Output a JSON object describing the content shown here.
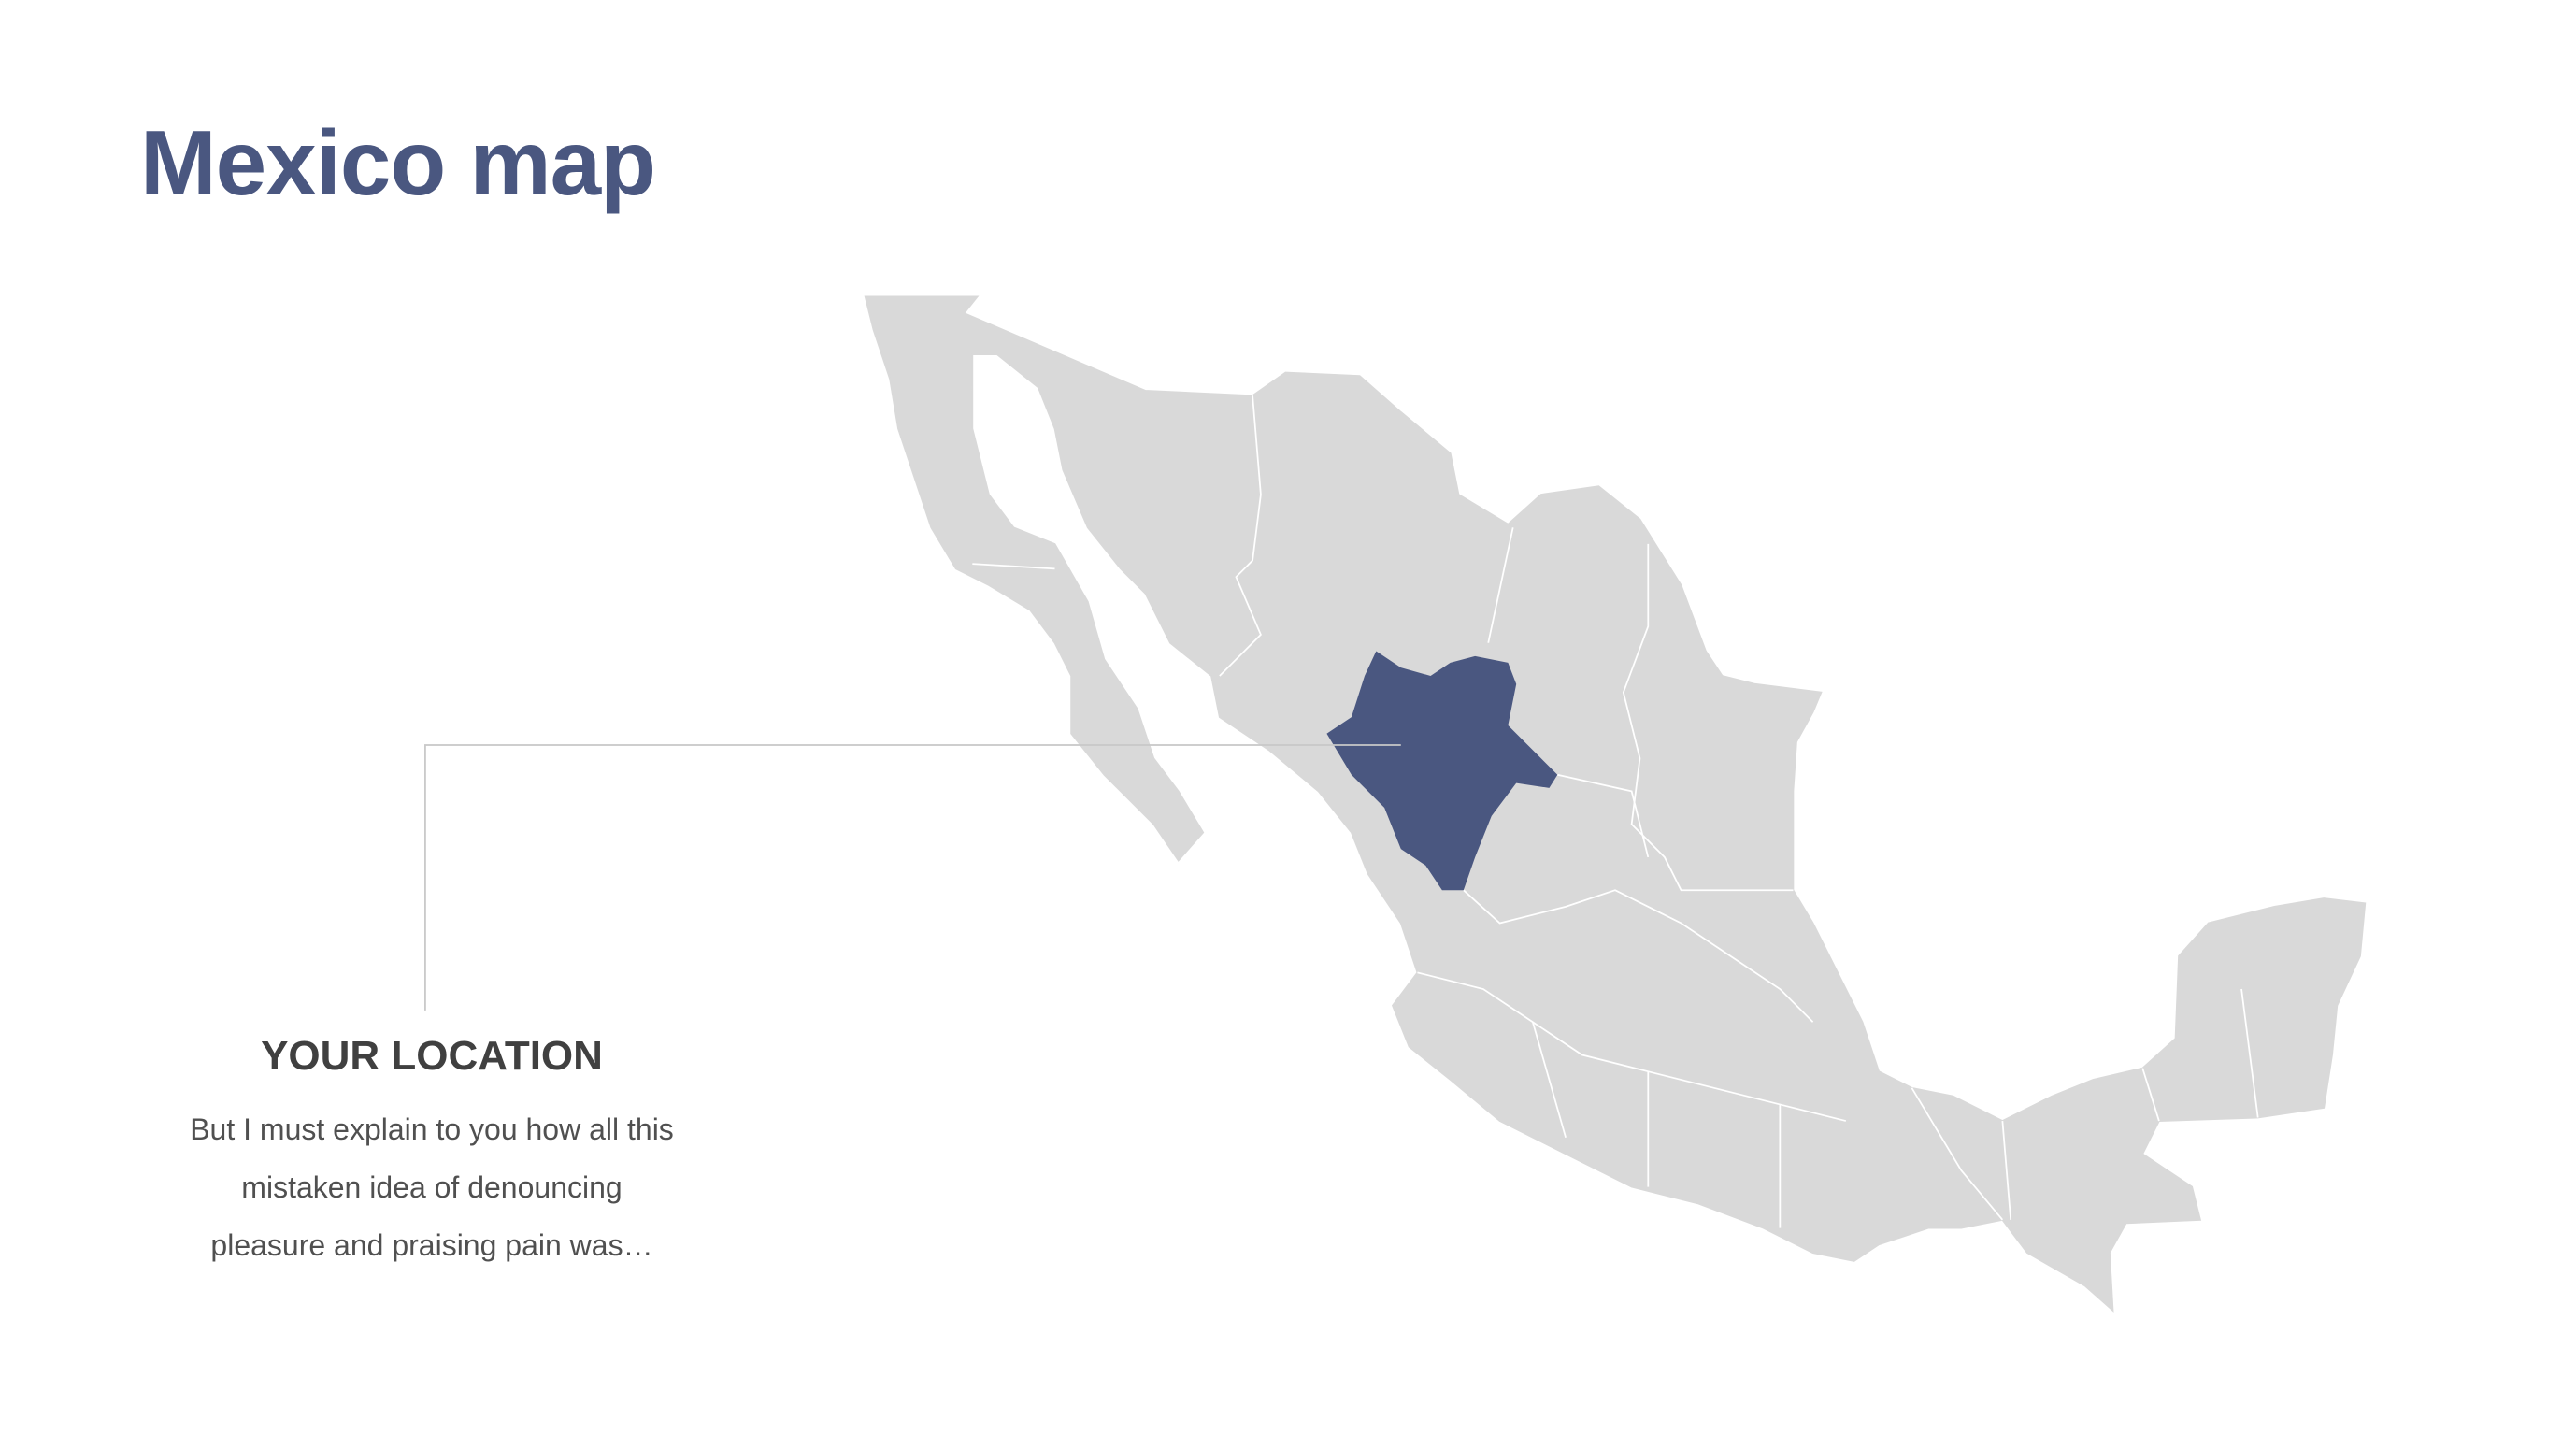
{
  "title": "Mexico map",
  "map": {
    "country": "Mexico",
    "highlighted_region": "Durango",
    "colors": {
      "land": "#d9d9d9",
      "highlight": "#4a5780",
      "borders": "#ffffff",
      "leader_line": "#c8c8c8"
    }
  },
  "callout": {
    "heading": "YOUR LOCATION",
    "lines": [
      "But I must explain to you how all this",
      "mistaken idea of denouncing",
      "pleasure and praising pain was…"
    ]
  }
}
